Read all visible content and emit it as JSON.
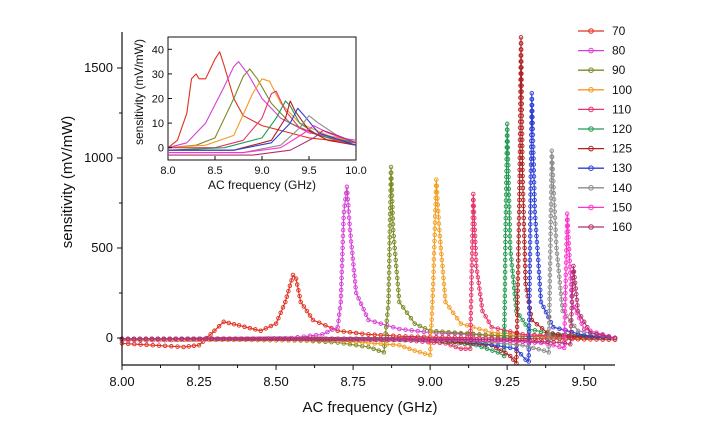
{
  "chart_data": [
    {
      "type": "line",
      "title": "",
      "xlabel": "AC frequency (GHz)",
      "ylabel": "sensitivity (mV/mW)",
      "xlim": [
        8.0,
        9.6
      ],
      "ylim": [
        -150,
        1700
      ],
      "xticks": [
        8.0,
        8.25,
        8.5,
        8.75,
        9.0,
        9.25,
        9.5
      ],
      "xtick_labels": [
        "8.00",
        "8.25",
        "8.50",
        "8.75",
        "9.00",
        "9.25",
        "9.50"
      ],
      "yticks": [
        0,
        500,
        1000,
        1500
      ],
      "ytick_labels": [
        "0",
        "500",
        "1000",
        "1500"
      ],
      "legend_position": "right",
      "series": [
        {
          "name": "70",
          "color": "#e0301e",
          "x": [
            8.0,
            8.1,
            8.2,
            8.25,
            8.3,
            8.33,
            8.38,
            8.45,
            8.5,
            8.53,
            8.555,
            8.565,
            8.58,
            8.62,
            8.7,
            8.8,
            8.9,
            9.0,
            9.2,
            9.4,
            9.6
          ],
          "y": [
            -30,
            -40,
            -50,
            -40,
            40,
            90,
            70,
            40,
            80,
            200,
            350,
            330,
            200,
            100,
            40,
            20,
            10,
            5,
            0,
            -5,
            -10
          ]
        },
        {
          "name": "80",
          "color": "#d63fd6",
          "x": [
            8.0,
            8.2,
            8.4,
            8.55,
            8.65,
            8.7,
            8.71,
            8.72,
            8.73,
            8.74,
            8.76,
            8.8,
            8.9,
            9.0,
            9.2,
            9.4,
            9.6
          ],
          "y": [
            -15,
            -10,
            -5,
            0,
            20,
            60,
            200,
            700,
            840,
            600,
            250,
            100,
            50,
            30,
            15,
            5,
            0
          ]
        },
        {
          "name": "90",
          "color": "#7b8a24",
          "x": [
            8.0,
            8.4,
            8.6,
            8.7,
            8.8,
            8.85,
            8.865,
            8.873,
            8.88,
            8.9,
            8.95,
            9.0,
            9.2,
            9.4,
            9.6
          ],
          "y": [
            -10,
            -10,
            -15,
            -25,
            -50,
            -80,
            200,
            950,
            600,
            200,
            80,
            40,
            15,
            5,
            0
          ]
        },
        {
          "name": "100",
          "color": "#f39c1f",
          "x": [
            8.0,
            8.4,
            8.7,
            8.9,
            8.95,
            9.0,
            9.01,
            9.02,
            9.03,
            9.05,
            9.1,
            9.2,
            9.4,
            9.6
          ],
          "y": [
            -10,
            -10,
            -15,
            -40,
            -70,
            -95,
            300,
            880,
            600,
            200,
            80,
            30,
            10,
            0
          ]
        },
        {
          "name": "110",
          "color": "#e8346a",
          "x": [
            8.0,
            8.5,
            8.9,
            9.05,
            9.1,
            9.13,
            9.14,
            9.15,
            9.17,
            9.2,
            9.3,
            9.45,
            9.6
          ],
          "y": [
            -5,
            -5,
            -10,
            -30,
            -60,
            -60,
            800,
            400,
            150,
            60,
            20,
            5,
            0
          ]
        },
        {
          "name": "120",
          "color": "#239a52",
          "x": [
            8.0,
            8.6,
            9.0,
            9.15,
            9.22,
            9.24,
            9.245,
            9.25,
            9.26,
            9.28,
            9.32,
            9.4,
            9.6
          ],
          "y": [
            -5,
            -5,
            -10,
            -40,
            -80,
            -100,
            600,
            1190,
            500,
            150,
            50,
            20,
            0
          ]
        },
        {
          "name": "125",
          "color": "#b02020",
          "x": [
            8.0,
            8.6,
            9.0,
            9.2,
            9.26,
            9.28,
            9.29,
            9.295,
            9.3,
            9.31,
            9.33,
            9.38,
            9.45,
            9.6
          ],
          "y": [
            -5,
            -5,
            -10,
            -40,
            -100,
            -140,
            800,
            1670,
            900,
            300,
            100,
            30,
            10,
            0
          ]
        },
        {
          "name": "130",
          "color": "#2b3fd6",
          "x": [
            8.0,
            8.7,
            9.1,
            9.28,
            9.31,
            9.32,
            9.33,
            9.34,
            9.36,
            9.4,
            9.5,
            9.6
          ],
          "y": [
            -5,
            -5,
            -10,
            -60,
            -120,
            -130,
            1360,
            700,
            200,
            60,
            15,
            0
          ]
        },
        {
          "name": "140",
          "color": "#8c8c8c",
          "x": [
            8.0,
            8.7,
            9.1,
            9.3,
            9.37,
            9.385,
            9.395,
            9.41,
            9.43,
            9.48,
            9.6
          ],
          "y": [
            -5,
            -5,
            -10,
            -40,
            -70,
            -80,
            1040,
            500,
            150,
            40,
            0
          ]
        },
        {
          "name": "150",
          "color": "#ff33cc",
          "x": [
            8.0,
            8.8,
            9.2,
            9.38,
            9.42,
            9.435,
            9.445,
            9.46,
            9.5,
            9.6
          ],
          "y": [
            -5,
            -5,
            -10,
            -30,
            -50,
            -55,
            690,
            200,
            50,
            0
          ]
        },
        {
          "name": "160",
          "color": "#b0306e",
          "x": [
            8.0,
            8.8,
            9.25,
            9.42,
            9.455,
            9.465,
            9.48,
            9.52,
            9.6
          ],
          "y": [
            -5,
            -5,
            -10,
            -25,
            -35,
            400,
            150,
            30,
            0
          ]
        }
      ]
    },
    {
      "type": "line",
      "title": "",
      "xlabel": "AC frequency (GHz)",
      "ylabel": "sensitivity (mV/mW)",
      "xlim": [
        8.0,
        10.0
      ],
      "ylim": [
        -5,
        45
      ],
      "xticks": [
        8.0,
        8.5,
        9.0,
        9.5,
        10.0
      ],
      "xtick_labels": [
        "8.0",
        "8.5",
        "9.0",
        "9.5",
        "10.0"
      ],
      "yticks": [
        0,
        10,
        20,
        30,
        40
      ],
      "ytick_labels": [
        "0",
        "10",
        "20",
        "30",
        "40"
      ],
      "series": [
        {
          "name": "70",
          "color": "#e0301e",
          "x": [
            8.0,
            8.1,
            8.2,
            8.25,
            8.3,
            8.33,
            8.4,
            8.5,
            8.55,
            8.6,
            8.7,
            8.8,
            9.0,
            9.2,
            9.5,
            10.0
          ],
          "y": [
            0,
            3,
            14,
            28,
            30,
            28,
            28,
            36,
            39,
            33,
            20,
            13,
            9,
            7,
            4,
            2
          ]
        },
        {
          "name": "80",
          "color": "#d63fd6",
          "x": [
            8.0,
            8.2,
            8.4,
            8.6,
            8.7,
            8.75,
            8.85,
            9.0,
            9.2,
            9.5,
            10.0
          ],
          "y": [
            0,
            2,
            10,
            25,
            33,
            35,
            30,
            20,
            12,
            6,
            3
          ]
        },
        {
          "name": "90",
          "color": "#7b8a24",
          "x": [
            8.0,
            8.3,
            8.5,
            8.7,
            8.8,
            8.87,
            8.95,
            9.1,
            9.3,
            9.6,
            10.0
          ],
          "y": [
            0,
            1,
            4,
            20,
            29,
            32,
            28,
            18,
            10,
            5,
            2
          ]
        },
        {
          "name": "100",
          "color": "#f39c1f",
          "x": [
            8.0,
            8.4,
            8.7,
            8.9,
            9.0,
            9.08,
            9.2,
            9.4,
            9.7,
            10.0
          ],
          "y": [
            0,
            1,
            5,
            22,
            28,
            27,
            18,
            10,
            5,
            2
          ]
        },
        {
          "name": "110",
          "color": "#e8346a",
          "x": [
            8.0,
            8.5,
            8.8,
            9.0,
            9.1,
            9.15,
            9.25,
            9.4,
            9.7,
            10.0
          ],
          "y": [
            0,
            0,
            3,
            12,
            22,
            23,
            15,
            8,
            4,
            1
          ]
        },
        {
          "name": "120",
          "color": "#239a52",
          "x": [
            8.0,
            8.6,
            9.0,
            9.15,
            9.25,
            9.3,
            9.4,
            9.6,
            10.0
          ],
          "y": [
            -1,
            0,
            4,
            12,
            19,
            17,
            10,
            5,
            2
          ]
        },
        {
          "name": "125",
          "color": "#b02020",
          "x": [
            8.0,
            8.7,
            9.1,
            9.25,
            9.3,
            9.35,
            9.5,
            9.7,
            10.0
          ],
          "y": [
            -1,
            -1,
            3,
            12,
            19,
            15,
            7,
            3,
            1
          ]
        },
        {
          "name": "130",
          "color": "#2b3fd6",
          "x": [
            8.0,
            8.7,
            9.1,
            9.3,
            9.38,
            9.45,
            9.6,
            10.0
          ],
          "y": [
            -1,
            -1,
            2,
            10,
            16,
            13,
            6,
            1
          ]
        },
        {
          "name": "140",
          "color": "#8c8c8c",
          "x": [
            8.0,
            8.8,
            9.2,
            9.4,
            9.5,
            9.6,
            9.8,
            10.0
          ],
          "y": [
            -2,
            -2,
            1,
            8,
            13,
            10,
            5,
            2
          ]
        },
        {
          "name": "150",
          "color": "#ff33cc",
          "x": [
            8.0,
            8.8,
            9.2,
            9.45,
            9.55,
            9.7,
            10.0
          ],
          "y": [
            -2,
            -2,
            0,
            6,
            9,
            6,
            2
          ]
        },
        {
          "name": "160",
          "color": "#b0306e",
          "x": [
            8.0,
            8.9,
            9.3,
            9.55,
            9.65,
            9.8,
            10.0
          ],
          "y": [
            -3,
            -3,
            -1,
            4,
            7,
            5,
            2
          ]
        }
      ]
    }
  ]
}
